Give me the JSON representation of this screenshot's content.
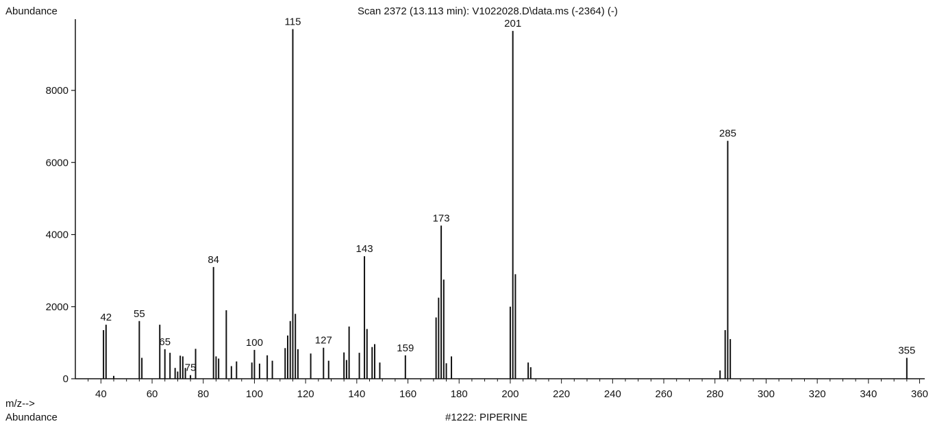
{
  "header": {
    "ylabel": "Abundance",
    "title": "Scan 2372 (13.113 min): V1022028.D\\data.ms (-2364) (-)"
  },
  "footer": {
    "xlabel": "m/z-->",
    "ylabel": "Abundance",
    "library_hit": "#1222: PIPERINE"
  },
  "chart_data": {
    "type": "bar",
    "title": "Scan 2372 (13.113 min): V1022028.D\\data.ms (-2364) (-)",
    "xlabel": "m/z-->",
    "ylabel": "Abundance",
    "xlim": [
      30,
      362
    ],
    "ylim": [
      0,
      10500
    ],
    "x_ticks": [
      40,
      60,
      80,
      100,
      120,
      140,
      160,
      180,
      200,
      220,
      240,
      260,
      280,
      300,
      320,
      340,
      360
    ],
    "y_ticks": [
      0,
      2000,
      4000,
      6000,
      8000
    ],
    "x_tick_labels": [
      "40",
      "60",
      "80",
      "100",
      "120",
      "140",
      "160",
      "180",
      "200",
      "220",
      "240",
      "260",
      "280",
      "300",
      "320",
      "340",
      "360"
    ],
    "y_tick_labels": [
      "0",
      "2000",
      "4000",
      "6000",
      "8000"
    ],
    "peaks": [
      {
        "mz": 41,
        "abundance": 1350
      },
      {
        "mz": 42,
        "abundance": 1500,
        "label": "42"
      },
      {
        "mz": 45,
        "abundance": 80
      },
      {
        "mz": 55,
        "abundance": 1600,
        "label": "55"
      },
      {
        "mz": 56,
        "abundance": 580
      },
      {
        "mz": 63,
        "abundance": 1500
      },
      {
        "mz": 65,
        "abundance": 820,
        "label": "65"
      },
      {
        "mz": 67,
        "abundance": 720
      },
      {
        "mz": 69,
        "abundance": 300
      },
      {
        "mz": 70,
        "abundance": 200
      },
      {
        "mz": 71,
        "abundance": 640
      },
      {
        "mz": 72,
        "abundance": 620
      },
      {
        "mz": 73,
        "abundance": 300
      },
      {
        "mz": 75,
        "abundance": 100,
        "label": "75"
      },
      {
        "mz": 77,
        "abundance": 830
      },
      {
        "mz": 84,
        "abundance": 3100,
        "label": "84"
      },
      {
        "mz": 85,
        "abundance": 620
      },
      {
        "mz": 86,
        "abundance": 560
      },
      {
        "mz": 89,
        "abundance": 1900
      },
      {
        "mz": 91,
        "abundance": 350
      },
      {
        "mz": 93,
        "abundance": 480
      },
      {
        "mz": 99,
        "abundance": 450
      },
      {
        "mz": 100,
        "abundance": 800,
        "label": "100"
      },
      {
        "mz": 102,
        "abundance": 420
      },
      {
        "mz": 105,
        "abundance": 650
      },
      {
        "mz": 107,
        "abundance": 500
      },
      {
        "mz": 112,
        "abundance": 850
      },
      {
        "mz": 113,
        "abundance": 1200
      },
      {
        "mz": 114,
        "abundance": 1600
      },
      {
        "mz": 115,
        "abundance": 9700,
        "label": "115"
      },
      {
        "mz": 116,
        "abundance": 1800
      },
      {
        "mz": 117,
        "abundance": 820
      },
      {
        "mz": 122,
        "abundance": 700
      },
      {
        "mz": 127,
        "abundance": 860,
        "label": "127"
      },
      {
        "mz": 129,
        "abundance": 500
      },
      {
        "mz": 135,
        "abundance": 730
      },
      {
        "mz": 136,
        "abundance": 520
      },
      {
        "mz": 137,
        "abundance": 1450
      },
      {
        "mz": 141,
        "abundance": 720
      },
      {
        "mz": 143,
        "abundance": 3400,
        "label": "143"
      },
      {
        "mz": 144,
        "abundance": 1380
      },
      {
        "mz": 146,
        "abundance": 880
      },
      {
        "mz": 147,
        "abundance": 960
      },
      {
        "mz": 149,
        "abundance": 450
      },
      {
        "mz": 159,
        "abundance": 650,
        "label": "159"
      },
      {
        "mz": 171,
        "abundance": 1700
      },
      {
        "mz": 172,
        "abundance": 2250
      },
      {
        "mz": 173,
        "abundance": 4250,
        "label": "173"
      },
      {
        "mz": 174,
        "abundance": 2750
      },
      {
        "mz": 175,
        "abundance": 430
      },
      {
        "mz": 177,
        "abundance": 620
      },
      {
        "mz": 200,
        "abundance": 2000
      },
      {
        "mz": 201,
        "abundance": 9650,
        "label": "201"
      },
      {
        "mz": 202,
        "abundance": 2900
      },
      {
        "mz": 207,
        "abundance": 450
      },
      {
        "mz": 208,
        "abundance": 320
      },
      {
        "mz": 282,
        "abundance": 230
      },
      {
        "mz": 284,
        "abundance": 1350
      },
      {
        "mz": 285,
        "abundance": 6600,
        "label": "285"
      },
      {
        "mz": 286,
        "abundance": 1100
      },
      {
        "mz": 355,
        "abundance": 580,
        "label": "355"
      }
    ]
  }
}
